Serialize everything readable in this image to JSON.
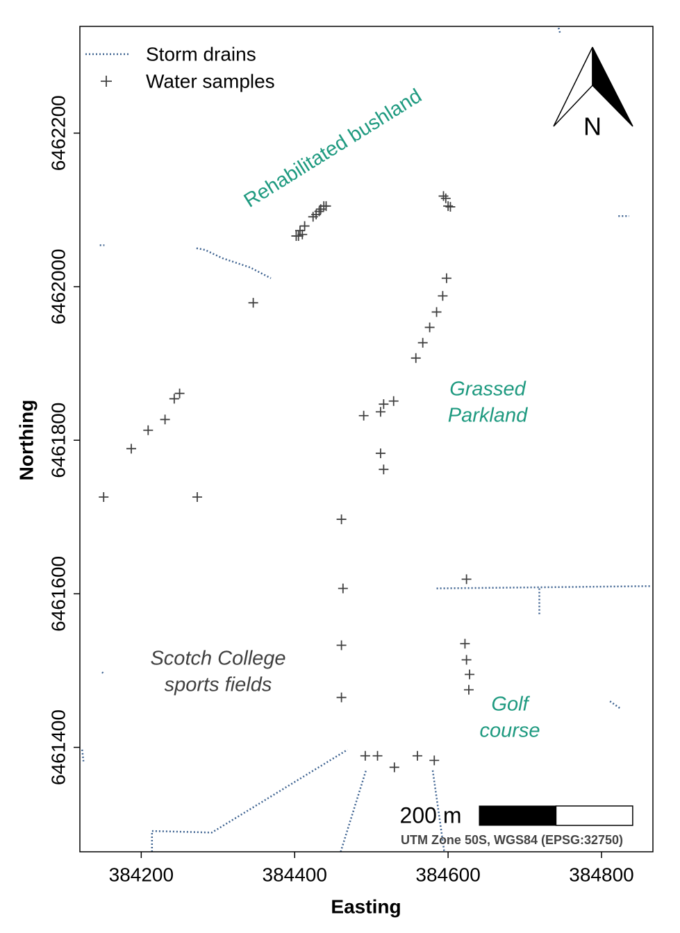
{
  "chart_data": {
    "type": "scatter",
    "x_label": "Easting",
    "y_label": "Northing",
    "xlim": [
      384120,
      384867
    ],
    "ylim": [
      6461264,
      6462339
    ],
    "xticks": [
      384200,
      384400,
      384600,
      384800
    ],
    "yticks": [
      6461400,
      6461600,
      6461800,
      6462000,
      6462200
    ],
    "legend": "top-left",
    "series": [
      {
        "name": "Storm drains",
        "type": "line",
        "color": "#3d6290",
        "x": [
          384272,
          384283,
          384306,
          384342,
          384369,
          null,
          384585,
          384865,
          null,
          384719,
          384719,
          null,
          384214,
          384214,
          384292,
          384469,
          null,
          384460,
          384493,
          null,
          384580,
          384595,
          null,
          384744,
          384746,
          null,
          384822,
          384836,
          null,
          384811,
          384824,
          null,
          384146,
          384152,
          null,
          384149,
          384152,
          null,
          384123,
          384125
        ],
        "y": [
          6462050,
          6462048,
          6462037,
          6462025,
          6462011,
          null,
          6461607,
          6461610,
          null,
          6461607,
          6461571,
          null,
          6461264,
          6461291,
          6461289,
          6461397,
          null,
          6461264,
          6461370,
          null,
          6461370,
          6461264,
          null,
          6462337,
          6462330,
          null,
          6462092,
          6462092,
          null,
          6461460,
          6461451,
          null,
          6462054,
          6462054,
          null,
          6461498,
          6461495,
          null,
          6461397,
          6461379
        ]
      },
      {
        "name": "Water samples",
        "type": "scatter",
        "color": "#404040",
        "x": [
          384402,
          384405,
          384410,
          384407,
          384413,
          384424,
          384428,
          384432,
          384434,
          384438,
          384441,
          384594,
          384597,
          384600,
          384603,
          384598,
          384593,
          384585,
          384576,
          384567,
          384558,
          384346,
          384250,
          384243,
          384231,
          384209,
          384187,
          384151,
          384273,
          384529,
          384516,
          384512,
          384490,
          384512,
          384516,
          384461,
          384463,
          384461,
          384461,
          384624,
          384622,
          384624,
          384628,
          384627,
          384492,
          384508,
          384530,
          384560,
          384582
        ],
        "y": [
          6462066,
          6462066,
          6462068,
          6462073,
          6462079,
          6462091,
          6462094,
          6462098,
          6462101,
          6462105,
          6462105,
          6462118,
          6462115,
          6462105,
          6462104,
          6462011,
          6461988,
          6461967,
          6461947,
          6461927,
          6461907,
          6461979,
          6461861,
          6461854,
          6461827,
          6461813,
          6461789,
          6461726,
          6461726,
          6461851,
          6461847,
          6461837,
          6461832,
          6461783,
          6461762,
          6461697,
          6461607,
          6461533,
          6461465,
          6461619,
          6461535,
          6461514,
          6461495,
          6461475,
          6461389,
          6461389,
          6461374,
          6461389,
          6461383
        ]
      }
    ],
    "annotations": [
      {
        "lines": [
          "Rehabilitated bushland"
        ],
        "color": "#1f9a80",
        "italic": false
      },
      {
        "lines": [
          "Grassed",
          "Parkland"
        ],
        "color": "#1f9a80",
        "italic": true
      },
      {
        "lines": [
          "Scotch College",
          "sports fields"
        ],
        "color": "#404040",
        "italic": true
      },
      {
        "lines": [
          "Golf",
          "course"
        ],
        "color": "#1f9a80",
        "italic": true
      }
    ],
    "north_arrow": "N",
    "scale_bar": {
      "label": "200 m",
      "length": 200
    },
    "crs": "UTM Zone 50S, WGS84 (EPSG:32750)"
  }
}
